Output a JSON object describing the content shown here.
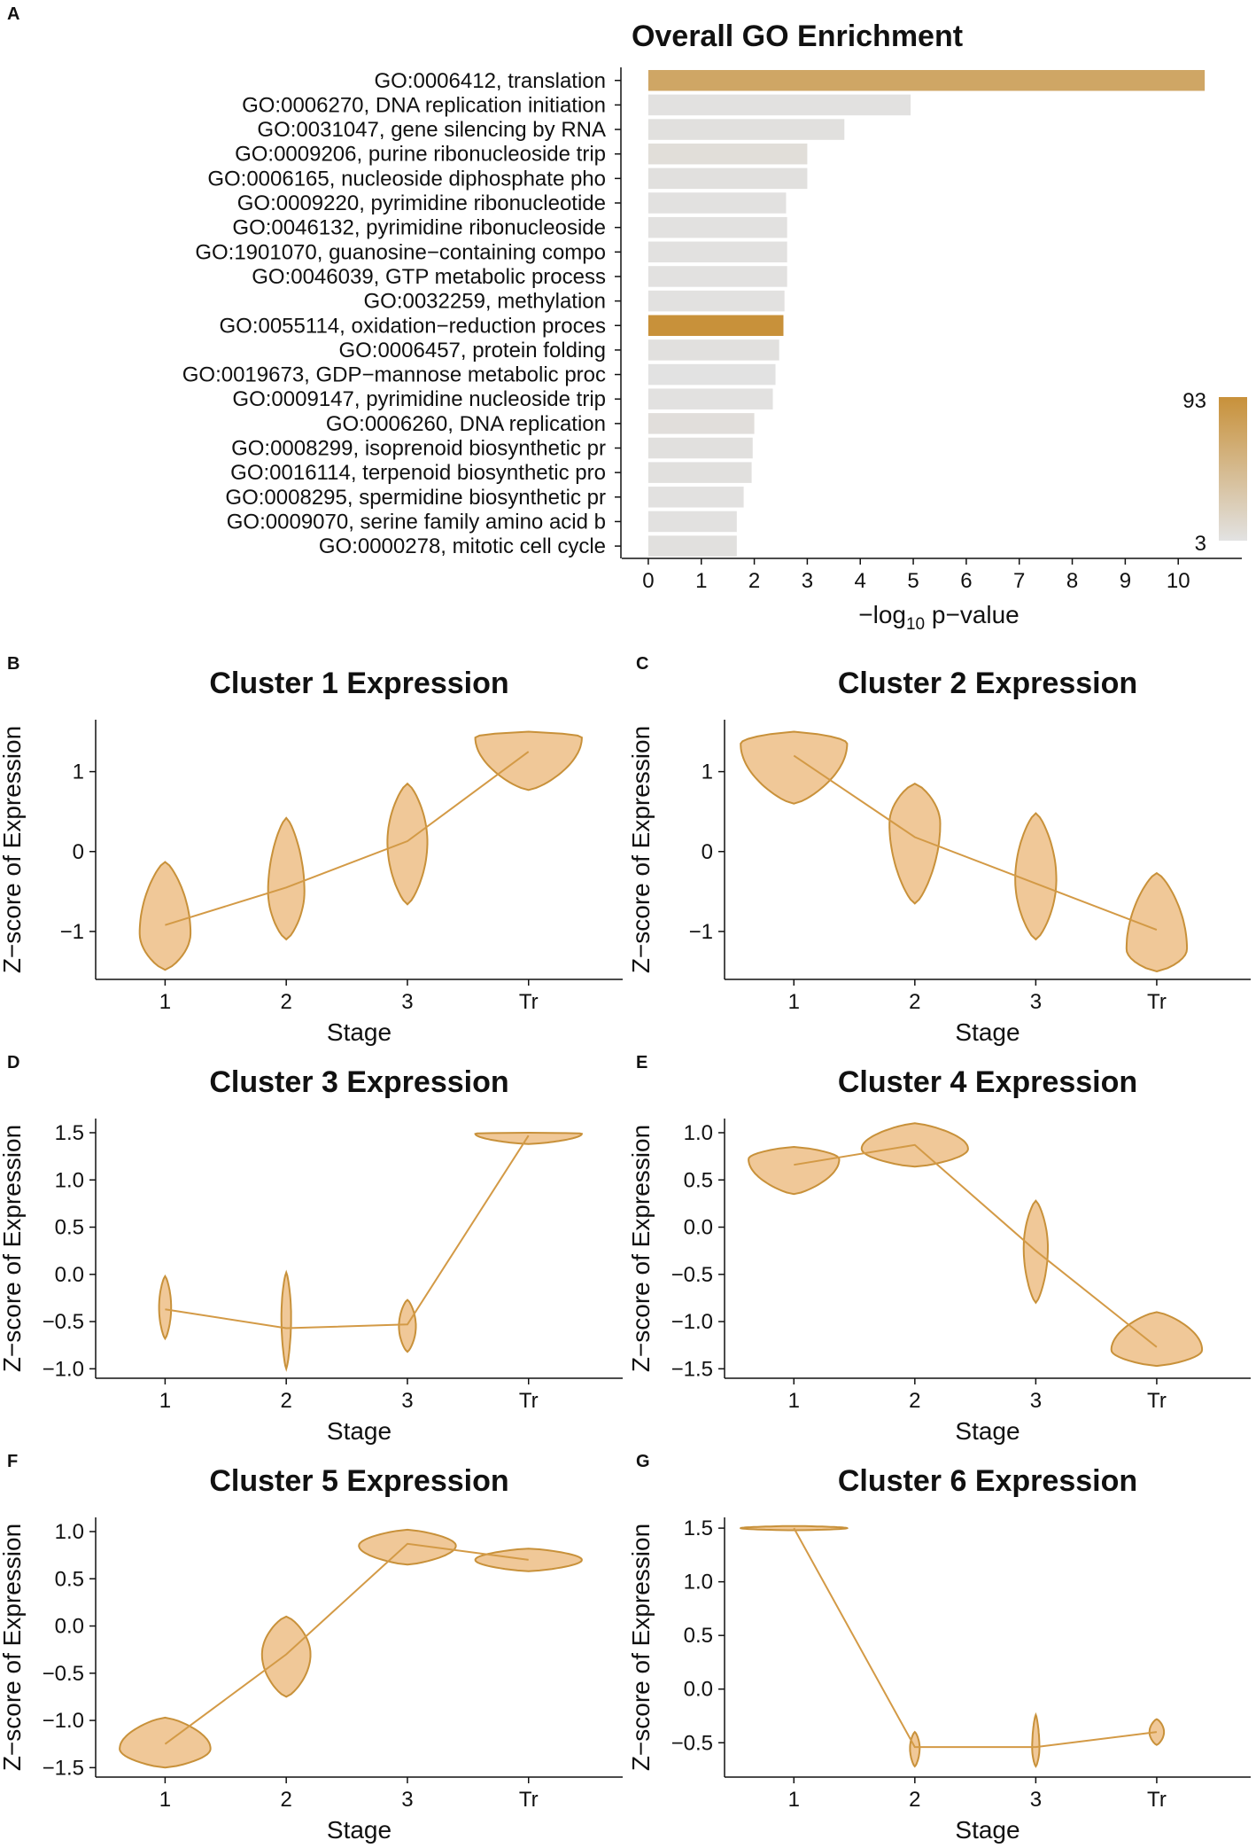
{
  "chart_data": [
    {
      "panel": "A",
      "type": "bar",
      "orientation": "horizontal",
      "title": "Overall GO Enrichment",
      "xlabel": "−log10 p−value",
      "xlabel_main": "−log",
      "xlabel_sub": "10",
      "xlabel_tail": " p−value",
      "xlim": [
        -0.5,
        11.2
      ],
      "xticks": [
        0,
        1,
        2,
        3,
        4,
        5,
        6,
        7,
        8,
        9,
        10
      ],
      "categories": [
        "GO:0006412, translation",
        "GO:0006270, DNA replication initiation",
        "GO:0031047, gene silencing by RNA",
        "GO:0009206, purine ribonucleoside trip",
        "GO:0006165, nucleoside diphosphate pho",
        "GO:0009220, pyrimidine ribonucleotide",
        "GO:0046132, pyrimidine ribonucleoside",
        "GO:1901070, guanosine−containing compo",
        "GO:0046039, GTP metabolic process",
        "GO:0032259, methylation",
        "GO:0055114, oxidation−reduction proces",
        "GO:0006457, protein folding",
        "GO:0019673, GDP−mannose metabolic proc",
        "GO:0009147, pyrimidine nucleoside trip",
        "GO:0006260, DNA replication",
        "GO:0008299, isoprenoid biosynthetic pr",
        "GO:0016114, terpenoid biosynthetic pro",
        "GO:0008295, spermidine biosynthetic pr",
        "GO:0009070, serine family amino acid b",
        "GO:0000278, mitotic cell cycle"
      ],
      "values": [
        10.5,
        4.95,
        3.7,
        3.0,
        3.0,
        2.6,
        2.62,
        2.62,
        2.62,
        2.57,
        2.55,
        2.47,
        2.4,
        2.35,
        2.0,
        1.97,
        1.95,
        1.8,
        1.67,
        1.67
      ],
      "gene_counts": [
        70,
        4,
        5,
        8,
        5,
        4,
        4,
        4,
        4,
        4,
        93,
        5,
        3,
        4,
        7,
        5,
        5,
        4,
        4,
        5
      ],
      "colorbar": {
        "min": 3,
        "max": 93,
        "min_label": "3",
        "max_label": "93",
        "low_color": "#e2e2e2",
        "high_color": "#c8913a"
      }
    },
    {
      "panel": "B",
      "type": "violin",
      "title": "Cluster 1 Expression",
      "xlabel": "Stage",
      "ylabel": "Z−score of Expression",
      "categories": [
        "1",
        "2",
        "3",
        "Tr"
      ],
      "ylim": [
        -1.6,
        1.65
      ],
      "yticks": [
        -1,
        0,
        1
      ],
      "ytick_labels": [
        "−1",
        "0",
        "1"
      ],
      "means": [
        -0.92,
        -0.45,
        0.13,
        1.25
      ],
      "violins": [
        {
          "min": -1.48,
          "max": -0.13,
          "mode": -1.02,
          "width": 0.42
        },
        {
          "min": -1.1,
          "max": 0.42,
          "mode": -0.5,
          "width": 0.3
        },
        {
          "min": -0.66,
          "max": 0.85,
          "mode": 0.12,
          "width": 0.33
        },
        {
          "min": 0.77,
          "max": 1.5,
          "mode": 1.43,
          "width": 0.88
        }
      ]
    },
    {
      "panel": "C",
      "type": "violin",
      "title": "Cluster 2 Expression",
      "xlabel": "Stage",
      "ylabel": "Z−score of Expression",
      "categories": [
        "1",
        "2",
        "3",
        "Tr"
      ],
      "ylim": [
        -1.6,
        1.65
      ],
      "yticks": [
        -1,
        0,
        1
      ],
      "ytick_labels": [
        "−1",
        "0",
        "1"
      ],
      "means": [
        1.2,
        0.18,
        -0.4,
        -0.98
      ],
      "violins": [
        {
          "min": 0.6,
          "max": 1.5,
          "mode": 1.35,
          "width": 0.88
        },
        {
          "min": -0.65,
          "max": 0.85,
          "mode": 0.35,
          "width": 0.42
        },
        {
          "min": -1.1,
          "max": 0.48,
          "mode": -0.35,
          "width": 0.34
        },
        {
          "min": -1.5,
          "max": -0.27,
          "mode": -1.22,
          "width": 0.5
        }
      ]
    },
    {
      "panel": "D",
      "type": "violin",
      "title": "Cluster 3 Expression",
      "xlabel": "Stage",
      "ylabel": "Z−score of Expression",
      "categories": [
        "1",
        "2",
        "3",
        "Tr"
      ],
      "ylim": [
        -1.1,
        1.65
      ],
      "yticks": [
        -1,
        -0.5,
        0,
        0.5,
        1,
        1.5
      ],
      "ytick_labels": [
        "−1.0",
        "−0.5",
        "0.0",
        "0.5",
        "1.0",
        "1.5"
      ],
      "means": [
        -0.37,
        -0.57,
        -0.53,
        1.47
      ],
      "violins": [
        {
          "min": -0.68,
          "max": -0.02,
          "mode": -0.35,
          "width": 0.1
        },
        {
          "min": -1.0,
          "max": 0.02,
          "mode": -0.45,
          "width": 0.08
        },
        {
          "min": -0.82,
          "max": -0.27,
          "mode": -0.55,
          "width": 0.14
        },
        {
          "min": 1.38,
          "max": 1.5,
          "mode": 1.49,
          "width": 0.88
        }
      ]
    },
    {
      "panel": "E",
      "type": "violin",
      "title": "Cluster 4 Expression",
      "xlabel": "Stage",
      "ylabel": "Z−score of Expression",
      "categories": [
        "1",
        "2",
        "3",
        "Tr"
      ],
      "ylim": [
        -1.6,
        1.15
      ],
      "yticks": [
        -1.5,
        -1,
        -0.5,
        0,
        0.5,
        1
      ],
      "ytick_labels": [
        "−1.5",
        "−1.0",
        "−0.5",
        "0.0",
        "0.5",
        "1.0"
      ],
      "means": [
        0.66,
        0.87,
        -0.25,
        -1.27
      ],
      "violins": [
        {
          "min": 0.35,
          "max": 0.85,
          "mode": 0.72,
          "width": 0.75
        },
        {
          "min": 0.64,
          "max": 1.1,
          "mode": 0.83,
          "width": 0.88
        },
        {
          "min": -0.8,
          "max": 0.28,
          "mode": -0.22,
          "width": 0.2
        },
        {
          "min": -1.47,
          "max": -0.9,
          "mode": -1.3,
          "width": 0.75
        }
      ]
    },
    {
      "panel": "F",
      "type": "violin",
      "title": "Cluster 5 Expression",
      "xlabel": "Stage",
      "ylabel": "Z−score of Expression",
      "categories": [
        "1",
        "2",
        "3",
        "Tr"
      ],
      "ylim": [
        -1.6,
        1.15
      ],
      "yticks": [
        -1.5,
        -1,
        -0.5,
        0,
        0.5,
        1
      ],
      "ytick_labels": [
        "−1.5",
        "−1.0",
        "−0.5",
        "0.0",
        "0.5",
        "1.0"
      ],
      "means": [
        -1.25,
        -0.3,
        0.87,
        0.7
      ],
      "violins": [
        {
          "min": -1.5,
          "max": -0.97,
          "mode": -1.3,
          "width": 0.75
        },
        {
          "min": -0.75,
          "max": 0.1,
          "mode": -0.3,
          "width": 0.4
        },
        {
          "min": 0.65,
          "max": 1.02,
          "mode": 0.85,
          "width": 0.8
        },
        {
          "min": 0.58,
          "max": 0.82,
          "mode": 0.7,
          "width": 0.88
        }
      ]
    },
    {
      "panel": "G",
      "type": "violin",
      "title": "Cluster 6 Expression",
      "xlabel": "Stage",
      "ylabel": "Z−score of Expression",
      "categories": [
        "1",
        "2",
        "3",
        "Tr"
      ],
      "ylim": [
        -0.82,
        1.6
      ],
      "yticks": [
        -0.5,
        0,
        0.5,
        1,
        1.5
      ],
      "ytick_labels": [
        "−0.5",
        "0.0",
        "0.5",
        "1.0",
        "1.5"
      ],
      "means": [
        1.5,
        -0.54,
        -0.54,
        -0.4
      ],
      "violins": [
        {
          "min": 1.48,
          "max": 1.52,
          "mode": 1.5,
          "width": 0.88
        },
        {
          "min": -0.72,
          "max": -0.4,
          "mode": -0.55,
          "width": 0.08
        },
        {
          "min": -0.72,
          "max": -0.24,
          "mode": -0.55,
          "width": 0.06
        },
        {
          "min": -0.52,
          "max": -0.28,
          "mode": -0.4,
          "width": 0.12
        }
      ]
    }
  ],
  "colors": {
    "bar_low": "#e2e2e2",
    "bar_high": "#c8913a",
    "violin_fill": "#f0c898",
    "violin_stroke": "#c8913a",
    "mean_line": "#d39a46"
  }
}
